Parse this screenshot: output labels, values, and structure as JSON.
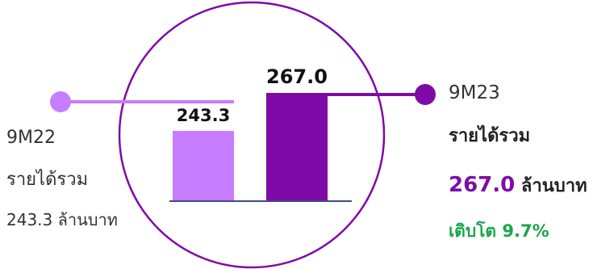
{
  "chart_data": {
    "type": "bar",
    "categories": [
      "9M22",
      "9M23"
    ],
    "values": [
      243.3,
      267.0
    ],
    "data_labels": [
      "243.3",
      "267.0"
    ],
    "colors": [
      "#c77dff",
      "#7f0aa8"
    ],
    "grid": false,
    "legend": "none"
  },
  "left_callout": {
    "period": "9M22",
    "title": "รายได้รวม",
    "value": "243.3 ล้านบาท",
    "color": "#c77dff"
  },
  "right_callout": {
    "period": "9M23",
    "title": "รายได้รวม",
    "value": "267.0",
    "unit": "ล้านบาท",
    "growth": "เติบโต 9.7%",
    "color": "#7f0aa8"
  },
  "accent_colors": {
    "circle": "#7f0aa8",
    "value": "#7b0ea8",
    "growth": "#1aa64a",
    "baseline": "#3b4a8c"
  }
}
